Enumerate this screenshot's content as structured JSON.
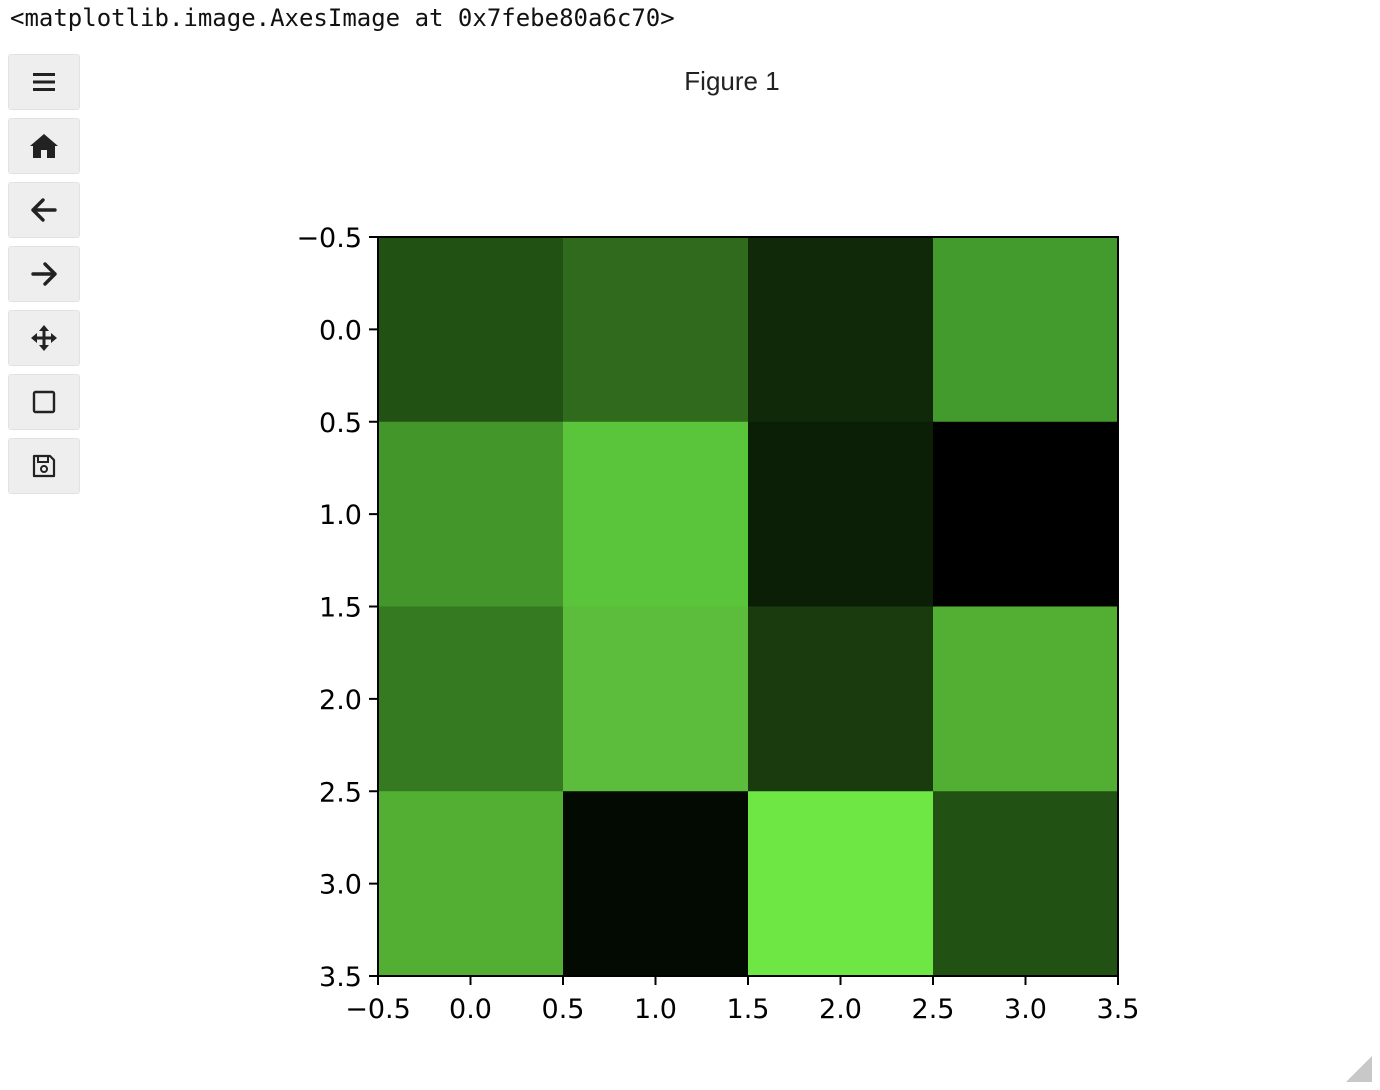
{
  "output_repr": "<matplotlib.image.AxesImage at 0x7febe80a6c70>",
  "figure": {
    "title": "Figure 1"
  },
  "toolbar": {
    "items": [
      {
        "name": "menu",
        "icon": "menu-icon"
      },
      {
        "name": "home",
        "icon": "home-icon"
      },
      {
        "name": "back",
        "icon": "back-arrow-icon"
      },
      {
        "name": "forward",
        "icon": "forward-arrow-icon"
      },
      {
        "name": "pan",
        "icon": "move-icon"
      },
      {
        "name": "zoom",
        "icon": "zoom-rect-icon"
      },
      {
        "name": "save",
        "icon": "save-icon"
      }
    ]
  },
  "chart_data": {
    "type": "heatmap",
    "colormap": "green",
    "xlim": [
      -0.5,
      3.5
    ],
    "ylim": [
      3.5,
      -0.5
    ],
    "xticks": [
      "−0.5",
      "0.0",
      "0.5",
      "1.0",
      "1.5",
      "2.0",
      "2.5",
      "3.0",
      "3.5"
    ],
    "yticks": [
      "−0.5",
      "0.0",
      "0.5",
      "1.0",
      "1.5",
      "2.0",
      "2.5",
      "3.0",
      "3.5"
    ],
    "cell_colors": [
      [
        "#225213",
        "#2f6a1d",
        "#0f2909",
        "#449b2d"
      ],
      [
        "#42962a",
        "#5ac53a",
        "#0a1f06",
        "#000000"
      ],
      [
        "#357a21",
        "#5bbd3b",
        "#193b0e",
        "#52af34"
      ],
      [
        "#52af34",
        "#020a01",
        "#6ee744",
        "#225213"
      ]
    ]
  }
}
